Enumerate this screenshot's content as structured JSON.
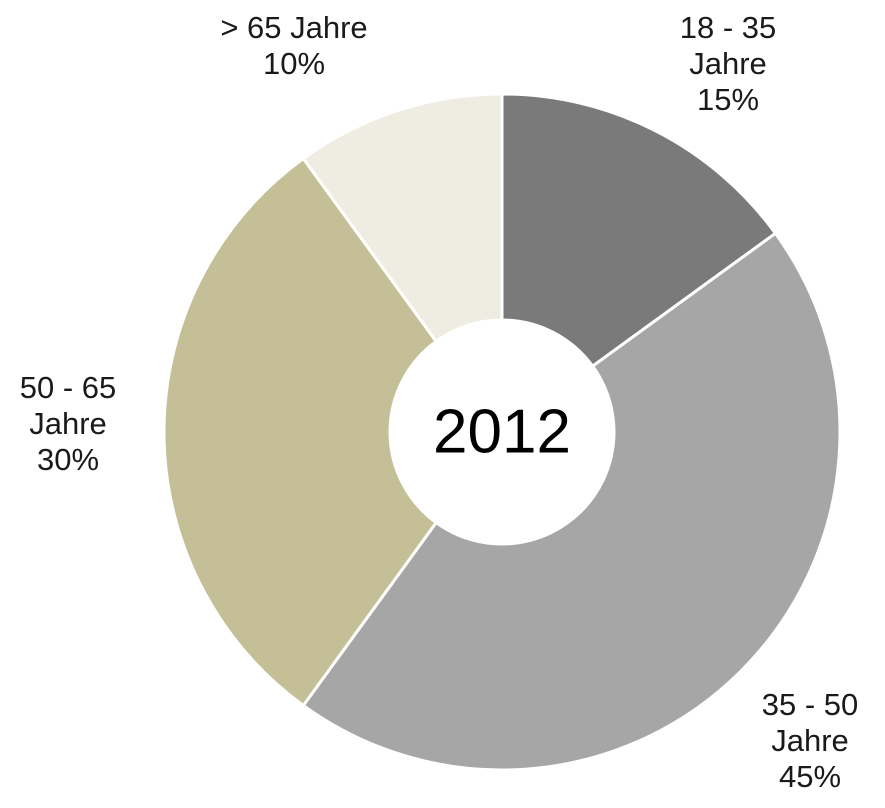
{
  "chart_data": {
    "type": "pie",
    "variant": "donut",
    "center_label": "2012",
    "slices": [
      {
        "label_lines": [
          "18 - 35",
          "Jahre",
          "15%"
        ],
        "value": 15,
        "color": "#7a7a7a"
      },
      {
        "label_lines": [
          "35 - 50",
          "Jahre",
          "45%"
        ],
        "value": 45,
        "color": "#a6a6a6"
      },
      {
        "label_lines": [
          "50 - 65",
          "Jahre",
          "30%"
        ],
        "value": 30,
        "color": "#c4bf96"
      },
      {
        "label_lines": [
          "> 65 Jahre",
          "10%"
        ],
        "value": 10,
        "color": "#efede2"
      }
    ]
  }
}
